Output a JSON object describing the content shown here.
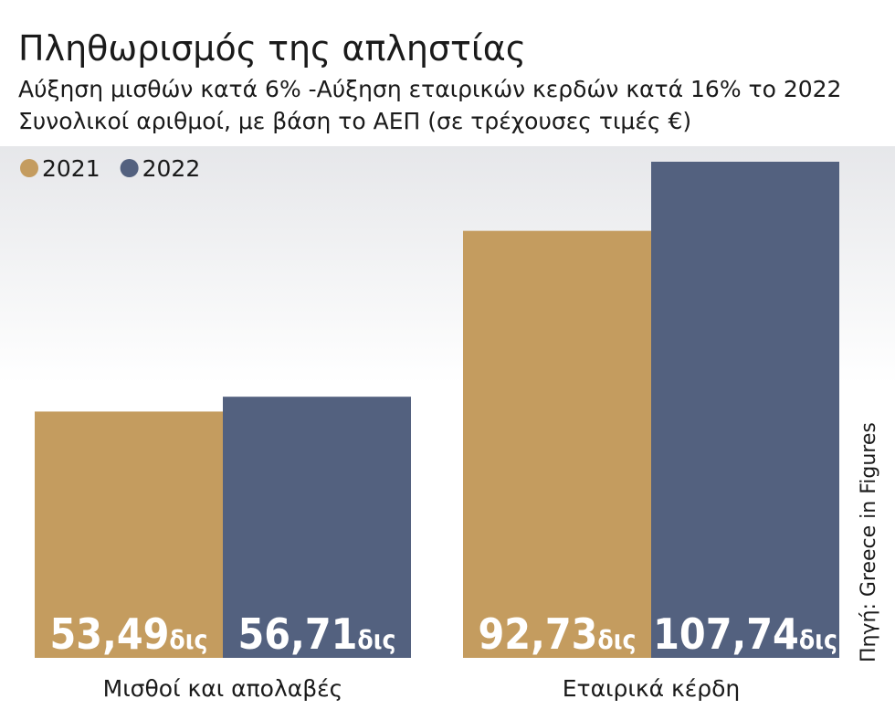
{
  "chart_data": {
    "type": "bar",
    "title": "Πληθωρισμός της απληστίας",
    "subtitle": [
      "Αύξηση μισθών κατά 6% -Αύξηση εταιρικών κερδών κατά 16% το 2022",
      "Συνολικοί αριθμοί, με βάση το ΑΕΠ (σε τρέχουσες τιμές €)"
    ],
    "categories": [
      "Μισθοί και απολαβές",
      "Εταιρικά κέρδη"
    ],
    "unit": "δις",
    "series": [
      {
        "name": "2021",
        "color": "#c49c5f",
        "values": [
          53.49,
          92.73
        ],
        "value_labels": [
          "53,49",
          "92,73"
        ]
      },
      {
        "name": "2022",
        "color": "#53617f",
        "values": [
          56.71,
          107.74
        ],
        "value_labels": [
          "56,71",
          "107,74"
        ]
      }
    ],
    "source": "Πηγή: Greece in Figures"
  }
}
